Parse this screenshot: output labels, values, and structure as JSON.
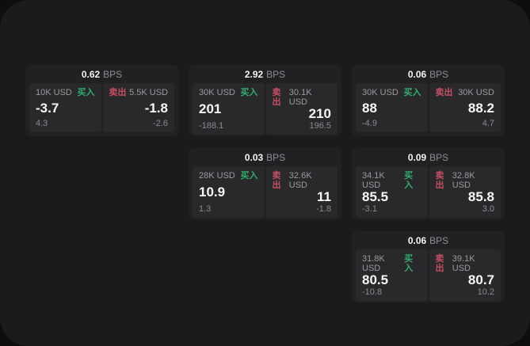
{
  "labels": {
    "bps_unit": "BPS",
    "buy": "买入",
    "sell": "卖出"
  },
  "colors": {
    "background": "#0e0e10",
    "surface": "#1b1b1d",
    "card": "#212123",
    "panel": "#29292b",
    "buy_green": "#2fae6e",
    "sell_red": "#c64f63",
    "text_primary": "#f7f7f7",
    "text_secondary": "#9b9b9f"
  },
  "cards": [
    {
      "bps": "0.62",
      "buy": {
        "size": "10K USD",
        "price": "-3.7",
        "sub": "4.3"
      },
      "sell": {
        "size": "5.5K USD",
        "price": "-1.8",
        "sub": "-2.6"
      }
    },
    {
      "bps": "2.92",
      "buy": {
        "size": "30K USD",
        "price": "201",
        "sub": "-188.1"
      },
      "sell": {
        "size": "30.1K USD",
        "price": "210",
        "sub": "196.5"
      }
    },
    {
      "bps": "0.06",
      "buy": {
        "size": "30K USD",
        "price": "88",
        "sub": "-4.9"
      },
      "sell": {
        "size": "30K USD",
        "price": "88.2",
        "sub": "4.7"
      }
    },
    {
      "bps": "0.03",
      "buy": {
        "size": "28K USD",
        "price": "10.9",
        "sub": "1.3"
      },
      "sell": {
        "size": "32.6K USD",
        "price": "11",
        "sub": "-1.8"
      }
    },
    {
      "bps": "0.09",
      "buy": {
        "size": "34.1K USD",
        "price": "85.5",
        "sub": "-3.1"
      },
      "sell": {
        "size": "32.8K USD",
        "price": "85.8",
        "sub": "3.0"
      }
    },
    {
      "bps": "0.06",
      "buy": {
        "size": "31.8K USD",
        "price": "80.5",
        "sub": "-10.8"
      },
      "sell": {
        "size": "39.1K USD",
        "price": "80.7",
        "sub": "10.2"
      }
    }
  ]
}
